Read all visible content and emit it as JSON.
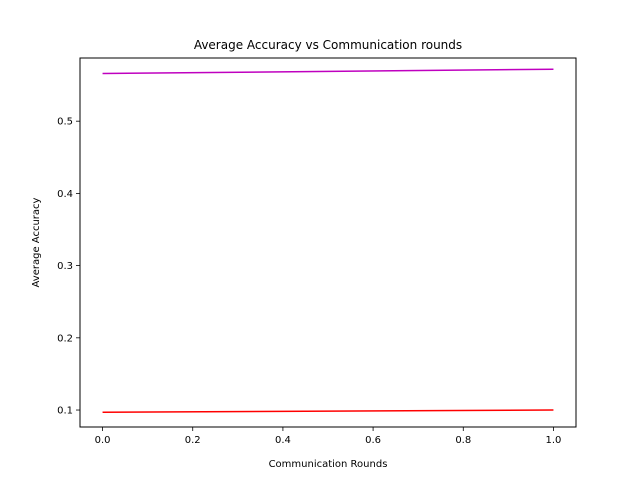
{
  "chart_data": {
    "type": "line",
    "title": "Average Accuracy vs Communication rounds",
    "xlabel": "Communication Rounds",
    "ylabel": "Average Accuracy",
    "xlim": [
      -0.05,
      1.05
    ],
    "ylim": [
      0.0765,
      0.5875
    ],
    "xticks": [
      0.0,
      0.2,
      0.4,
      0.6,
      0.8,
      1.0
    ],
    "xtick_labels": [
      "0.0",
      "0.2",
      "0.4",
      "0.6",
      "0.8",
      "1.0"
    ],
    "yticks": [
      0.1,
      0.2,
      0.3,
      0.4,
      0.5
    ],
    "ytick_labels": [
      "0.1",
      "0.2",
      "0.3",
      "0.4",
      "0.5"
    ],
    "grid": false,
    "legend": false,
    "series": [
      {
        "color": "#bf00bf",
        "x": [
          0,
          1
        ],
        "y": [
          0.566,
          0.572
        ]
      },
      {
        "color": "#ff0000",
        "x": [
          0,
          1
        ],
        "y": [
          0.097,
          0.1
        ]
      }
    ]
  }
}
